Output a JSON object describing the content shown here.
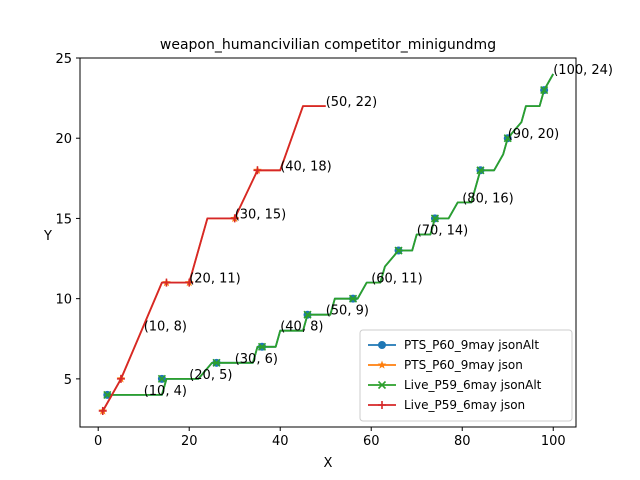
{
  "chart_data": {
    "type": "line",
    "title": "weapon_humancivilian competitor_minigundmg",
    "xlabel": "X",
    "ylabel": "Y",
    "xlim": [
      -4,
      105
    ],
    "ylim": [
      2,
      25
    ],
    "xticks": [
      0,
      20,
      40,
      60,
      80,
      100
    ],
    "yticks": [
      5,
      10,
      15,
      20,
      25
    ],
    "legend_position": "lower-right",
    "series": [
      {
        "name": "PTS_P60_9may jsonAlt",
        "color": "#1f77b4",
        "marker": "circle",
        "x": [
          2,
          14,
          15,
          21,
          22,
          25,
          26,
          34,
          35,
          37,
          38,
          39,
          40,
          44,
          45,
          46,
          51,
          52,
          56,
          57,
          59,
          60,
          62,
          63,
          66,
          67,
          69,
          70,
          72,
          73,
          74,
          76,
          77,
          79,
          80,
          82,
          83,
          84,
          86,
          87,
          89,
          90,
          93,
          94,
          96,
          97,
          98,
          100
        ],
        "y": [
          4,
          4,
          5,
          5,
          5,
          6,
          6,
          6,
          7,
          7,
          7,
          7,
          8,
          8,
          8,
          9,
          9,
          10,
          10,
          10,
          11,
          11,
          11,
          12,
          13,
          13,
          13,
          14,
          14,
          14,
          15,
          15,
          15,
          16,
          16,
          16,
          17,
          18,
          18,
          18,
          19,
          20,
          21,
          22,
          22,
          22,
          23,
          24
        ],
        "marker_x": [
          2,
          14,
          26,
          36,
          46,
          56,
          66,
          74,
          84,
          90,
          98
        ],
        "marker_y": [
          4,
          5,
          6,
          7,
          9,
          10,
          13,
          15,
          18,
          20,
          23
        ]
      },
      {
        "name": "PTS_P60_9may json",
        "color": "#ff7f0e",
        "marker": "star",
        "x": [
          1,
          5,
          14,
          20,
          24,
          30,
          35,
          40,
          45,
          50
        ],
        "y": [
          3,
          5,
          11,
          11,
          15,
          15,
          18,
          18,
          22,
          22
        ],
        "marker_x": [
          1,
          5,
          15,
          20,
          30,
          35
        ],
        "marker_y": [
          3,
          5,
          11,
          11,
          15,
          18
        ]
      },
      {
        "name": "Live_P59_6may jsonAlt",
        "color": "#2ca02c",
        "marker": "x",
        "x": [
          2,
          14,
          15,
          21,
          22,
          25,
          26,
          34,
          35,
          37,
          38,
          39,
          40,
          44,
          45,
          46,
          51,
          52,
          56,
          57,
          59,
          60,
          62,
          63,
          66,
          67,
          69,
          70,
          72,
          73,
          74,
          76,
          77,
          79,
          80,
          82,
          83,
          84,
          86,
          87,
          89,
          90,
          93,
          94,
          96,
          97,
          98,
          100
        ],
        "y": [
          4,
          4,
          5,
          5,
          5,
          6,
          6,
          6,
          7,
          7,
          7,
          7,
          8,
          8,
          8,
          9,
          9,
          10,
          10,
          10,
          11,
          11,
          11,
          12,
          13,
          13,
          13,
          14,
          14,
          14,
          15,
          15,
          15,
          16,
          16,
          16,
          17,
          18,
          18,
          18,
          19,
          20,
          21,
          22,
          22,
          22,
          23,
          24
        ],
        "marker_x": [
          2,
          14,
          26,
          36,
          46,
          56,
          66,
          74,
          84,
          90,
          98
        ],
        "marker_y": [
          4,
          5,
          6,
          7,
          9,
          10,
          13,
          15,
          18,
          20,
          23
        ]
      },
      {
        "name": "Live_P59_6may json",
        "color": "#d62728",
        "marker": "plus",
        "x": [
          1,
          5,
          14,
          20,
          24,
          30,
          35,
          40,
          45,
          50
        ],
        "y": [
          3,
          5,
          11,
          11,
          15,
          15,
          18,
          18,
          22,
          22
        ],
        "marker_x": [
          1,
          5,
          15,
          20,
          30,
          35
        ],
        "marker_y": [
          3,
          5,
          11,
          11,
          15,
          18
        ]
      }
    ],
    "annotations": [
      {
        "text": "(10, 4)",
        "x": 10,
        "y": 4
      },
      {
        "text": "(20, 5)",
        "x": 20,
        "y": 5
      },
      {
        "text": "(30, 6)",
        "x": 30,
        "y": 6
      },
      {
        "text": "(40, 8)",
        "x": 40,
        "y": 8
      },
      {
        "text": "(50, 9)",
        "x": 50,
        "y": 9
      },
      {
        "text": "(60, 11)",
        "x": 60,
        "y": 11
      },
      {
        "text": "(70, 14)",
        "x": 70,
        "y": 14
      },
      {
        "text": "(80, 16)",
        "x": 80,
        "y": 16
      },
      {
        "text": "(90, 20)",
        "x": 90,
        "y": 20
      },
      {
        "text": "(100, 24)",
        "x": 100,
        "y": 24
      },
      {
        "text": "(10, 8)",
        "x": 10,
        "y": 8
      },
      {
        "text": "(20, 11)",
        "x": 20,
        "y": 11
      },
      {
        "text": "(30, 15)",
        "x": 30,
        "y": 15
      },
      {
        "text": "(40, 18)",
        "x": 40,
        "y": 18
      },
      {
        "text": "(50, 22)",
        "x": 50,
        "y": 22
      }
    ]
  }
}
